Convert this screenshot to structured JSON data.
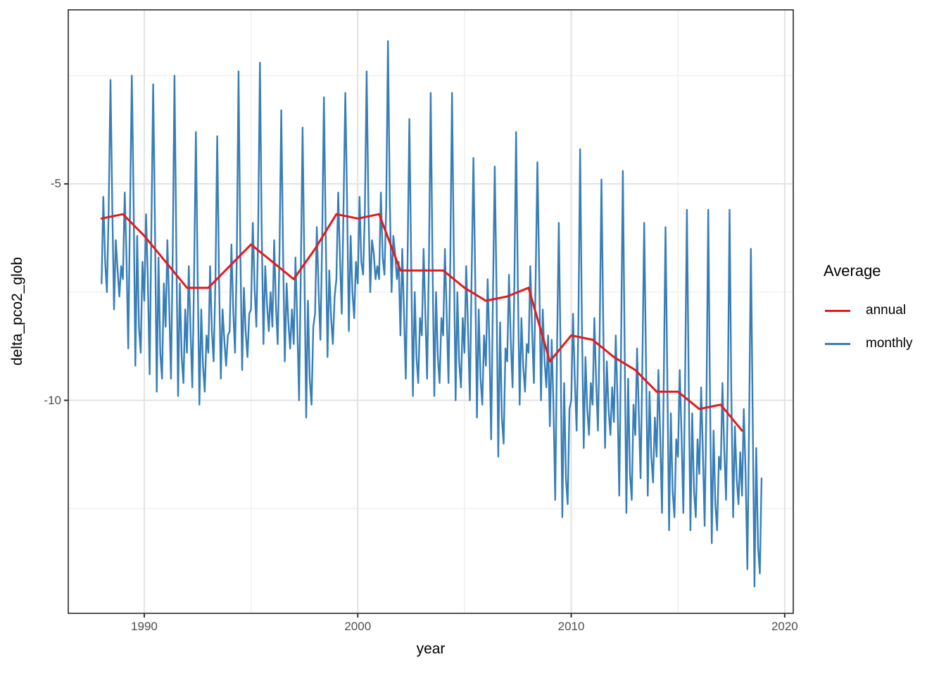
{
  "chart_data": {
    "type": "line",
    "title": "",
    "xlabel": "year",
    "ylabel": "delta_pco2_glob",
    "x_domain": [
      1986.44,
      2020.4
    ],
    "y_domain": [
      -14.92,
      -0.98
    ],
    "grid": "on",
    "legend_position": "right",
    "x_ticks": [
      {
        "value": 1990,
        "label": "1990"
      },
      {
        "value": 2000,
        "label": "2000"
      },
      {
        "value": 2010,
        "label": "2010"
      },
      {
        "value": 2020,
        "label": "2020"
      }
    ],
    "y_ticks": [
      {
        "value": -5,
        "label": "-5"
      },
      {
        "value": -10,
        "label": "-10"
      }
    ],
    "x_minor": [
      1995,
      2005,
      2015
    ],
    "y_minor": [
      -2.5,
      -7.5,
      -12.5
    ],
    "colors": {
      "annual": "#E41A1C",
      "monthly": "#377EB8",
      "grid_major": "#E3E3E3",
      "grid_minor": "#EFEFEF",
      "panel_border": "#2B2B2B",
      "tick_text": "#4D4D4D"
    },
    "legend": {
      "title": "Average",
      "entries": [
        {
          "label": "annual",
          "color": "#E41A1C"
        },
        {
          "label": "monthly",
          "color": "#377EB8"
        }
      ]
    },
    "series": [
      {
        "name": "annual",
        "color": "#E41A1C",
        "width": 3,
        "start_year": 1988,
        "step_years": 1,
        "values": [
          -5.8,
          -5.7,
          -6.2,
          -6.8,
          -7.4,
          -7.4,
          -6.9,
          -6.4,
          -6.8,
          -7.2,
          -6.5,
          -5.7,
          -5.8,
          -5.7,
          -7.0,
          -7.0,
          -7.0,
          -7.4,
          -7.7,
          -7.6,
          -7.4,
          -9.1,
          -8.5,
          -8.6,
          -9.0,
          -9.3,
          -9.8,
          -9.8,
          -10.2,
          -10.1,
          -10.7
        ]
      },
      {
        "name": "monthly",
        "color": "#377EB8",
        "width": 2.4,
        "start_year": 1988,
        "step_years": 0.0833333,
        "values": [
          -7.3,
          -5.3,
          -6.8,
          -7.5,
          -5.6,
          -2.6,
          -5.5,
          -7.9,
          -6.3,
          -7.0,
          -7.6,
          -6.9,
          -7.2,
          -5.2,
          -6.7,
          -8.8,
          -5.5,
          -2.5,
          -5.4,
          -9.2,
          -6.2,
          -8.3,
          -8.9,
          -6.8,
          -7.7,
          -5.7,
          -7.2,
          -9.4,
          -6.0,
          -2.7,
          -5.9,
          -9.8,
          -6.7,
          -8.9,
          -9.5,
          -7.3,
          -8.3,
          -6.3,
          -7.8,
          -9.5,
          -6.6,
          -2.5,
          -6.5,
          -9.9,
          -7.3,
          -9.0,
          -9.6,
          -7.9,
          -8.9,
          -6.9,
          -8.4,
          -9.7,
          -7.2,
          -3.8,
          -7.1,
          -10.1,
          -7.9,
          -9.2,
          -9.8,
          -8.5,
          -8.9,
          -6.9,
          -8.4,
          -9.1,
          -7.2,
          -3.9,
          -7.1,
          -9.5,
          -7.9,
          -8.6,
          -9.2,
          -8.5,
          -8.4,
          -6.4,
          -7.9,
          -8.9,
          -6.7,
          -2.4,
          -6.6,
          -9.3,
          -7.4,
          -8.4,
          -9.0,
          -8.0,
          -7.9,
          -5.9,
          -7.4,
          -8.3,
          -6.2,
          -2.2,
          -6.1,
          -8.7,
          -6.9,
          -7.8,
          -8.4,
          -7.5,
          -8.3,
          -6.3,
          -7.8,
          -8.7,
          -6.6,
          -3.3,
          -6.5,
          -9.1,
          -7.3,
          -8.2,
          -8.8,
          -7.9,
          -8.7,
          -6.7,
          -8.2,
          -10.0,
          -7.0,
          -3.7,
          -6.9,
          -10.4,
          -7.7,
          -9.5,
          -10.1,
          -8.3,
          -8.0,
          -6.0,
          -7.5,
          -8.6,
          -6.3,
          -3.0,
          -6.2,
          -9.0,
          -7.0,
          -8.1,
          -8.7,
          -7.6,
          -7.2,
          -5.2,
          -6.7,
          -8.0,
          -5.5,
          -2.9,
          -5.4,
          -8.4,
          -6.2,
          -7.5,
          -8.1,
          -6.8,
          -7.3,
          -5.3,
          -6.8,
          -7.1,
          -5.6,
          -2.4,
          -5.5,
          -7.5,
          -6.3,
          -6.6,
          -7.2,
          -6.9,
          -7.2,
          -5.2,
          -6.7,
          -7.1,
          -5.5,
          -1.7,
          -5.4,
          -7.5,
          -6.2,
          -6.6,
          -7.2,
          -6.8,
          -8.5,
          -6.5,
          -8.0,
          -9.5,
          -6.8,
          -3.5,
          -6.7,
          -9.9,
          -7.5,
          -9.0,
          -9.6,
          -8.1,
          -8.5,
          -6.5,
          -8.0,
          -9.5,
          -6.8,
          -2.9,
          -6.7,
          -9.9,
          -7.5,
          -9.0,
          -9.6,
          -8.1,
          -8.5,
          -6.5,
          -8.0,
          -9.6,
          -6.8,
          -2.9,
          -6.7,
          -10.0,
          -7.5,
          -9.1,
          -9.7,
          -8.1,
          -8.9,
          -6.9,
          -8.4,
          -10.0,
          -7.2,
          -4.4,
          -7.1,
          -10.4,
          -7.9,
          -9.5,
          -10.1,
          -8.5,
          -9.2,
          -7.2,
          -8.7,
          -10.9,
          -7.5,
          -4.6,
          -7.4,
          -11.3,
          -8.2,
          -10.4,
          -11.0,
          -8.8,
          -9.1,
          -7.1,
          -8.6,
          -9.7,
          -7.4,
          -3.8,
          -7.3,
          -10.1,
          -8.1,
          -9.2,
          -9.8,
          -8.7,
          -8.9,
          -6.9,
          -8.4,
          -9.6,
          -7.2,
          -4.5,
          -7.1,
          -10.0,
          -7.9,
          -9.1,
          -9.7,
          -8.5,
          -10.6,
          -8.6,
          -10.1,
          -12.3,
          -8.9,
          -5.9,
          -8.8,
          -12.7,
          -9.6,
          -11.8,
          -12.4,
          -10.2,
          -10.0,
          -8.0,
          -9.5,
          -10.7,
          -8.3,
          -4.2,
          -8.2,
          -11.1,
          -9.0,
          -10.2,
          -10.8,
          -9.6,
          -10.1,
          -8.1,
          -9.6,
          -10.7,
          -8.4,
          -4.9,
          -8.3,
          -11.1,
          -9.1,
          -10.2,
          -10.8,
          -9.7,
          -10.5,
          -8.5,
          -10.0,
          -12.2,
          -8.8,
          -4.7,
          -8.7,
          -12.6,
          -9.5,
          -11.7,
          -12.3,
          -10.1,
          -10.8,
          -8.8,
          -10.3,
          -11.8,
          -9.1,
          -5.9,
          -9.0,
          -12.2,
          -9.8,
          -11.3,
          -11.9,
          -10.4,
          -11.3,
          -9.3,
          -10.8,
          -12.6,
          -9.6,
          -6.0,
          -9.5,
          -13.0,
          -10.3,
          -12.1,
          -12.7,
          -10.9,
          -11.3,
          -9.3,
          -10.8,
          -12.6,
          -9.6,
          -5.6,
          -9.5,
          -13.0,
          -10.3,
          -12.1,
          -12.7,
          -10.9,
          -11.7,
          -9.7,
          -11.2,
          -12.9,
          -10.0,
          -5.6,
          -9.9,
          -13.3,
          -10.7,
          -12.4,
          -13.0,
          -11.3,
          -11.6,
          -9.6,
          -11.1,
          -12.3,
          -9.9,
          -5.6,
          -9.8,
          -12.7,
          -10.6,
          -11.8,
          -12.4,
          -11.2,
          -12.2,
          -10.2,
          -11.7,
          -13.9,
          -10.5,
          -6.5,
          -10.4,
          -14.3,
          -11.1,
          -13.4,
          -14.0,
          -11.8
        ]
      }
    ]
  }
}
